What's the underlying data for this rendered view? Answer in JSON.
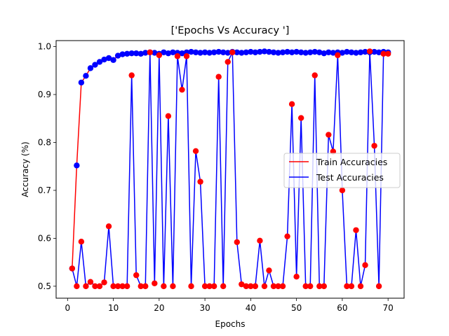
{
  "chart_data": {
    "type": "line",
    "title": "['Epochs Vs Accuracy ']",
    "xlabel": "Epochs",
    "ylabel": "Accuracy (%)",
    "xlim": [
      -2.5,
      73.5
    ],
    "ylim": [
      0.475,
      1.0125
    ],
    "xticks": [
      0,
      10,
      20,
      30,
      40,
      50,
      60,
      70
    ],
    "yticks": [
      0.5,
      0.6,
      0.7,
      0.8,
      0.9,
      1.0
    ],
    "grid": false,
    "legend_position": "center-right",
    "x": [
      1,
      2,
      3,
      4,
      5,
      6,
      7,
      8,
      9,
      10,
      11,
      12,
      13,
      14,
      15,
      16,
      17,
      18,
      19,
      20,
      21,
      22,
      23,
      24,
      25,
      26,
      27,
      28,
      29,
      30,
      31,
      32,
      33,
      34,
      35,
      36,
      37,
      38,
      39,
      40,
      41,
      42,
      43,
      44,
      45,
      46,
      47,
      48,
      49,
      50,
      51,
      52,
      53,
      54,
      55,
      56,
      57,
      58,
      59,
      60,
      61,
      62,
      63,
      64,
      65,
      66,
      67,
      68,
      69,
      70
    ],
    "series": [
      {
        "name": "Train Accuracies",
        "color": "#ff0000",
        "marker_color": "#0000ff",
        "values": [
          0.537,
          0.752,
          0.925,
          0.939,
          0.955,
          0.962,
          0.968,
          0.973,
          0.976,
          0.972,
          0.981,
          0.984,
          0.985,
          0.986,
          0.986,
          0.985,
          0.987,
          0.988,
          0.987,
          0.985,
          0.988,
          0.986,
          0.988,
          0.987,
          0.986,
          0.988,
          0.989,
          0.988,
          0.987,
          0.988,
          0.987,
          0.988,
          0.989,
          0.988,
          0.987,
          0.989,
          0.988,
          0.987,
          0.988,
          0.989,
          0.988,
          0.989,
          0.99,
          0.989,
          0.988,
          0.987,
          0.988,
          0.989,
          0.988,
          0.989,
          0.988,
          0.987,
          0.988,
          0.989,
          0.988,
          0.986,
          0.988,
          0.987,
          0.988,
          0.987,
          0.989,
          0.988,
          0.987,
          0.988,
          0.989,
          0.988,
          0.989,
          0.988,
          0.989,
          0.988
        ]
      },
      {
        "name": "Test Accuracies",
        "color": "#0000ff",
        "marker_color": "#ff0000",
        "values": [
          0.537,
          0.5,
          0.593,
          0.5,
          0.509,
          0.5,
          0.5,
          0.508,
          0.625,
          0.5,
          0.5,
          0.5,
          0.5,
          0.94,
          0.523,
          0.5,
          0.5,
          0.988,
          0.506,
          0.982,
          0.5,
          0.855,
          0.5,
          0.98,
          0.91,
          0.98,
          0.5,
          0.782,
          0.718,
          0.5,
          0.5,
          0.5,
          0.937,
          0.5,
          0.968,
          0.988,
          0.592,
          0.504,
          0.5,
          0.5,
          0.5,
          0.595,
          0.5,
          0.533,
          0.5,
          0.5,
          0.5,
          0.604,
          0.88,
          0.52,
          0.851,
          0.5,
          0.5,
          0.94,
          0.5,
          0.5,
          0.816,
          0.781,
          0.982,
          0.7,
          0.5,
          0.5,
          0.617,
          0.5,
          0.544,
          0.99,
          0.793,
          0.5,
          0.985,
          0.985
        ]
      }
    ]
  }
}
